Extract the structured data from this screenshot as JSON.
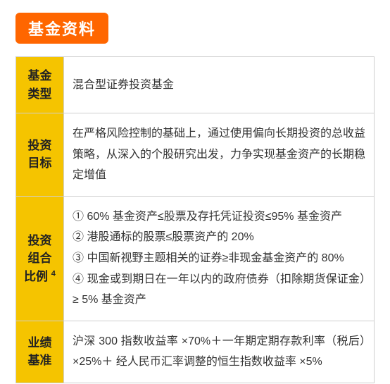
{
  "section": {
    "title": "基金资料"
  },
  "table": {
    "rows": [
      {
        "label": "基金类型",
        "content": "混合型证券投资基金"
      },
      {
        "label": "投资目标",
        "content": "在严格风险控制的基础上，通过使用偏向长期投资的总收益策略，从深入的个股研究出发，力争实现基金资产的长期稳定增值"
      },
      {
        "label": "投资组合比例",
        "label_sup": "4",
        "content": "① 60% 基金资产≤股票及存托凭证投资≤95% 基金资产\n② 港股通标的股票≤股票资产的 20%\n③ 中国新视野主题相关的证券≥非现金基金资产的 80%\n④ 现金或到期日在一年以内的政府债券（扣除期货保证金）≥ 5% 基金资产"
      },
      {
        "label": "业绩基准",
        "content": "沪深 300 指数收益率 ×70%＋一年期定期存款利率（税后）×25%＋ 经人民币汇率调整的恒生指数收益率 ×5%"
      }
    ]
  },
  "colors": {
    "title_bg": "#ff6600",
    "title_text": "#ffffff",
    "label_bg": "#f5c400",
    "label_text": "#222222",
    "border": "#cfcfcf",
    "body_text": "#333333",
    "background": "#ffffff"
  }
}
